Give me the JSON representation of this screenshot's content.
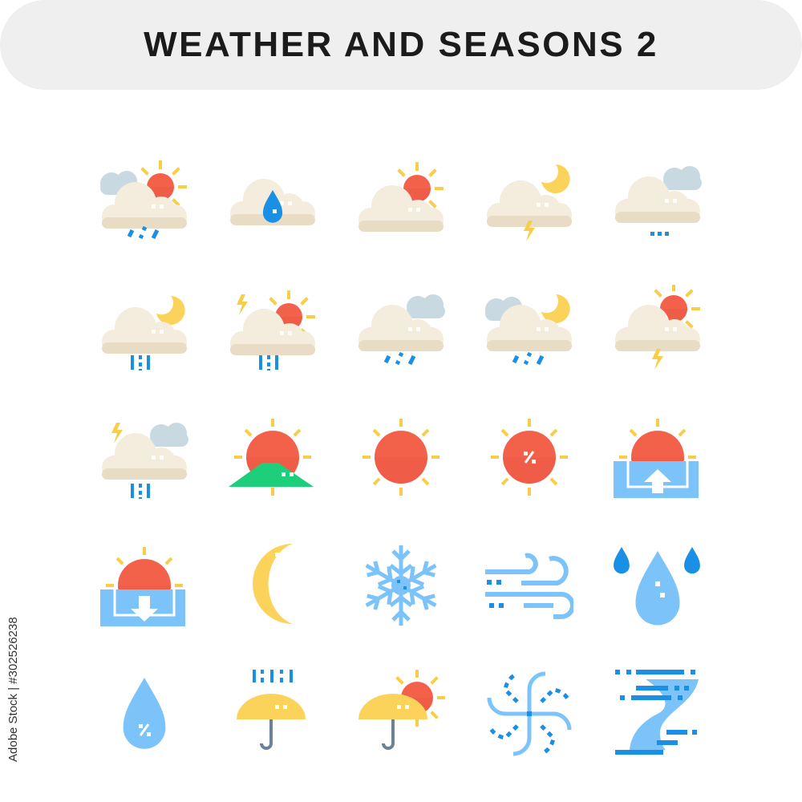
{
  "header": {
    "title": "WEATHER AND SEASONS 2"
  },
  "watermark": {
    "side_text": "Adobe Stock | #302526238"
  },
  "colors": {
    "cloud": "#f4ecdc",
    "cloud_shade": "#e8dcc5",
    "grey_cloud": "#c9d9e1",
    "sun": "#f4614b",
    "sun_ray": "#f8cd47",
    "rain": "#1a8fe6",
    "light_blue": "#7cc3f9",
    "moon": "#fcd35a",
    "hill": "#1dce7b",
    "umbrella_handle": "#6b8299",
    "title_bg": "#efefef",
    "title_text": "#1b1b1b"
  },
  "icons": [
    {
      "name": "cloud-sun-rain-icon"
    },
    {
      "name": "cloud-raindrop-icon"
    },
    {
      "name": "cloud-sun-icon"
    },
    {
      "name": "cloud-moon-thunder-icon"
    },
    {
      "name": "cloud-drizzle-icon"
    },
    {
      "name": "cloud-moon-heavy-rain-icon"
    },
    {
      "name": "cloud-sun-thunderstorm-icon"
    },
    {
      "name": "cloud-rain-icon"
    },
    {
      "name": "cloud-moon-rain-icon"
    },
    {
      "name": "cloud-sun-thunder-icon"
    },
    {
      "name": "cloud-thunderstorm-icon"
    },
    {
      "name": "sun-hill-icon"
    },
    {
      "name": "sun-icon"
    },
    {
      "name": "sun-percent-icon"
    },
    {
      "name": "sunrise-icon"
    },
    {
      "name": "sunset-icon"
    },
    {
      "name": "moon-icon"
    },
    {
      "name": "snowflake-icon"
    },
    {
      "name": "wind-icon"
    },
    {
      "name": "water-drops-icon"
    },
    {
      "name": "humidity-percent-icon"
    },
    {
      "name": "umbrella-rain-icon"
    },
    {
      "name": "umbrella-sun-icon"
    },
    {
      "name": "whirlwind-icon"
    },
    {
      "name": "tornado-icon"
    }
  ]
}
